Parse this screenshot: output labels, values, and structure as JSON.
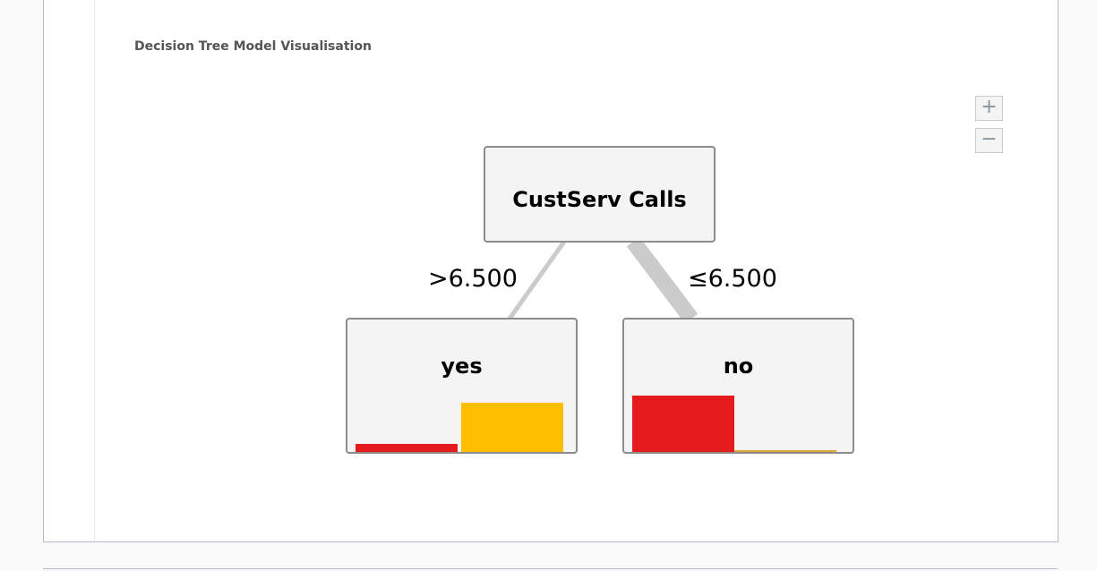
{
  "title": "Decision Tree Model Visualisation",
  "zoom_controls": {
    "zoom_in": "+",
    "zoom_out": "−"
  },
  "colors": {
    "class_no": "#e41a1c",
    "class_yes": "#ffbf00"
  },
  "tree": {
    "root": {
      "label": "CustServ Calls"
    },
    "edges": [
      {
        "label": ">6.500",
        "target": "yes"
      },
      {
        "label": "≤6.500",
        "target": "no"
      }
    ],
    "leaves": [
      {
        "label": "yes",
        "class_proportions": {
          "no": 0.14,
          "yes": 0.86
        }
      },
      {
        "label": "no",
        "class_proportions": {
          "no": 0.98,
          "yes": 0.02
        }
      }
    ]
  }
}
